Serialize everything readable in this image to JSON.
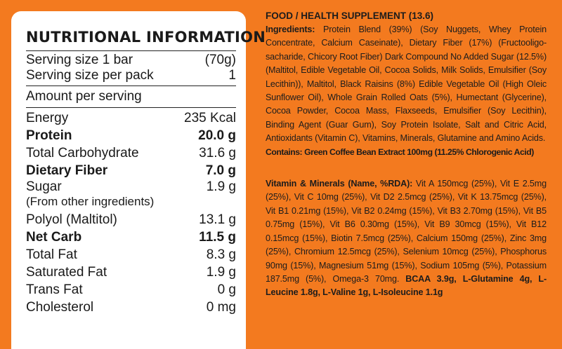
{
  "nutrition": {
    "title": "NUTRITIONAL INFORMATION",
    "serving_size": {
      "label": "Serving size 1 bar",
      "value": "(70g)"
    },
    "servings_per_pack": {
      "label": "Serving size per pack",
      "value": "1"
    },
    "amount_per_serving": "Amount per serving",
    "energy": {
      "label": "Energy",
      "value": "235 Kcal"
    },
    "protein": {
      "label": "Protein",
      "value": "20.0 g"
    },
    "total_carbohydrate": {
      "label": "Total Carbohydrate",
      "value": "31.6 g"
    },
    "dietary_fiber": {
      "label": "Dietary Fiber",
      "value": "7.0 g"
    },
    "sugar": {
      "label": "Sugar",
      "note": "(From other ingredients)",
      "value": "1.9 g"
    },
    "polyol": {
      "label": "Polyol (Maltitol)",
      "value": "13.1 g"
    },
    "net_carb": {
      "label": "Net Carb",
      "value": "11.5 g"
    },
    "total_fat": {
      "label": "Total Fat",
      "value": "8.3 g"
    },
    "saturated_fat": {
      "label": "Saturated Fat",
      "value": "1.9 g"
    },
    "trans_fat": {
      "label": "Trans Fat",
      "value": "0 g"
    },
    "cholesterol": {
      "label": "Cholesterol",
      "value": "0 mg"
    }
  },
  "label": {
    "heading": "FOOD / HEALTH SUPPLEMENT (13.6)",
    "ingredients_label": "Ingredients:",
    "ingredients_text": "Protein Blend (39%) (Soy Nuggets, Whey Protein Concentrate, Calcium Caseinate), Dietary Fiber (17%) (Fructooligo-sacharide, Chicory Root Fiber) Dark Compound No Added Sugar (12.5%) (Maltitol, Edible Vegetable Oil, Cocoa Solids, Milk Solids, Emulsifier (Soy Lecithin)), Maltitol, Black Raisins (8%) Edible Vegetable Oil (High Oleic Sunflower Oil), Whole Grain Rolled Oats (5%), Humectant (Glycerine), Cocoa Powder, Cocoa Mass, Flaxseeds, Emulsifier (Soy Lecithin), Binding Agent (Guar Gum), Soy Protein Isolate, Salt and Citric Acid, Antioxidants (Vitamin C), Vitamins, Minerals, Glutamine and Amino Acids.",
    "contains": "Contains: Green Coffee Bean Extract 100mg (11.25% Chlorogenic Acid)",
    "vitamins_label": "Vitamin & Minerals (Name, %RDA):",
    "vitamins_text": "Vit A 150mcg (25%), Vit E 2.5mg (25%), Vit C 10mg (25%), Vit D2 2.5mcg (25%), Vit K 13.75mcg (25%), Vit B1 0.21mg (15%), Vit B2 0.24mg (15%), Vit B3 2.70mg (15%), Vit B5 0.75mg (15%), Vit B6 0.30mg (15%), Vit B9 30mcg (15%), Vit B12 0.15mcg (15%), Biotin 7.5mcg (25%), Calcium 150mg (25%), Zinc 3mg (25%), Chromium 12.5mcg (25%), Selenium 10mcg (25%), Phosphorus 90mg (15%), Magnesium 51mg (15%), Sodium 105mg (5%), Potassium 187.5mg (5%), Omega-3 70mg.",
    "amino_text": "BCAA 3.9g, L-Glutamine 4g, L-Leucine 1.8g, L-Valine 1g, L-Isoleucine 1.1g"
  },
  "colors": {
    "background": "#f37a1f",
    "panel": "#ffffff",
    "text": "#1c1c1c"
  }
}
